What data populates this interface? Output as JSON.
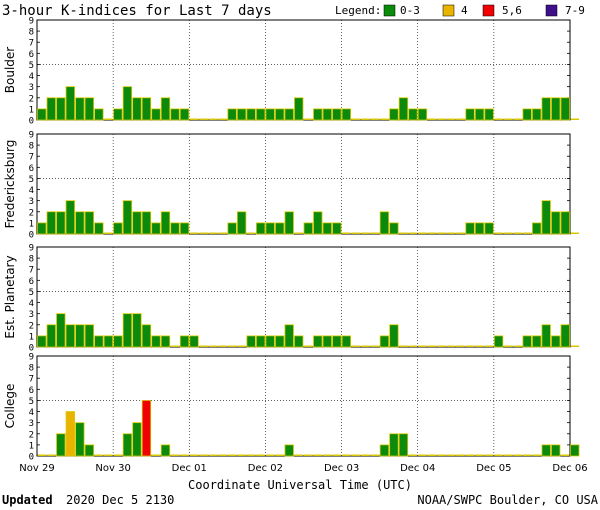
{
  "title": "3-hour K-indices for Last 7 days",
  "legend": {
    "label": "Legend:",
    "items": [
      {
        "label": "0-3",
        "color": "#0b8a0b"
      },
      {
        "label": "4",
        "color": "#e8b400"
      },
      {
        "label": "5,6",
        "color": "#f00000"
      },
      {
        "label": "7-9",
        "color": "#40108a"
      }
    ]
  },
  "xlabel": "Coordinate Universal Time (UTC)",
  "footer": {
    "updated_label": "Updated",
    "updated_value": "2020 Dec  5 2130",
    "credit": "NOAA/SWPC Boulder, CO USA"
  },
  "chart_data": {
    "type": "bar",
    "x_ticks": [
      "Nov 29",
      "Nov 30",
      "Dec 01",
      "Dec 02",
      "Dec 03",
      "Dec 04",
      "Dec 05",
      "Dec 06"
    ],
    "y_ticks": [
      "0",
      "1",
      "2",
      "3",
      "4",
      "5",
      "6",
      "7",
      "8",
      "9"
    ],
    "ylim": [
      0,
      9
    ],
    "bars_per_day": 8,
    "series": [
      {
        "name": "Boulder",
        "values": [
          1,
          2,
          2,
          3,
          2,
          2,
          1,
          0,
          1,
          3,
          2,
          2,
          1,
          2,
          1,
          1,
          0,
          0,
          0,
          0,
          1,
          1,
          1,
          1,
          1,
          1,
          1,
          2,
          0,
          1,
          1,
          1,
          1,
          0,
          0,
          0,
          0,
          1,
          2,
          1,
          1,
          0,
          0,
          0,
          0,
          1,
          1,
          1,
          0,
          0,
          0,
          1,
          1,
          2,
          2,
          2,
          0
        ]
      },
      {
        "name": "Fredericksburg",
        "values": [
          1,
          2,
          2,
          3,
          2,
          2,
          1,
          0,
          1,
          3,
          2,
          2,
          1,
          2,
          1,
          1,
          0,
          0,
          0,
          0,
          1,
          2,
          0,
          1,
          1,
          1,
          2,
          0,
          1,
          2,
          1,
          1,
          0,
          0,
          0,
          0,
          2,
          1,
          0,
          0,
          0,
          0,
          0,
          0,
          0,
          1,
          1,
          1,
          0,
          0,
          0,
          0,
          1,
          3,
          2,
          2,
          0
        ]
      },
      {
        "name": "Est. Planetary",
        "values": [
          1,
          2,
          3,
          2,
          2,
          2,
          1,
          1,
          1,
          3,
          3,
          2,
          1,
          1,
          0,
          1,
          1,
          0,
          0,
          0,
          0,
          0,
          1,
          1,
          1,
          1,
          2,
          1,
          0,
          1,
          1,
          1,
          1,
          0,
          0,
          0,
          1,
          2,
          0,
          0,
          0,
          0,
          0,
          0,
          0,
          0,
          0,
          0,
          1,
          0,
          0,
          1,
          1,
          2,
          1,
          2,
          0
        ]
      },
      {
        "name": "College",
        "values": [
          0,
          0,
          2,
          4,
          3,
          1,
          0,
          0,
          0,
          2,
          3,
          5,
          0,
          1,
          0,
          0,
          0,
          0,
          0,
          0,
          0,
          0,
          0,
          0,
          0,
          0,
          1,
          0,
          0,
          0,
          0,
          0,
          0,
          0,
          0,
          0,
          1,
          2,
          2,
          0,
          0,
          0,
          0,
          0,
          0,
          0,
          0,
          0,
          0,
          0,
          0,
          0,
          0,
          1,
          1,
          0,
          1
        ]
      }
    ]
  }
}
